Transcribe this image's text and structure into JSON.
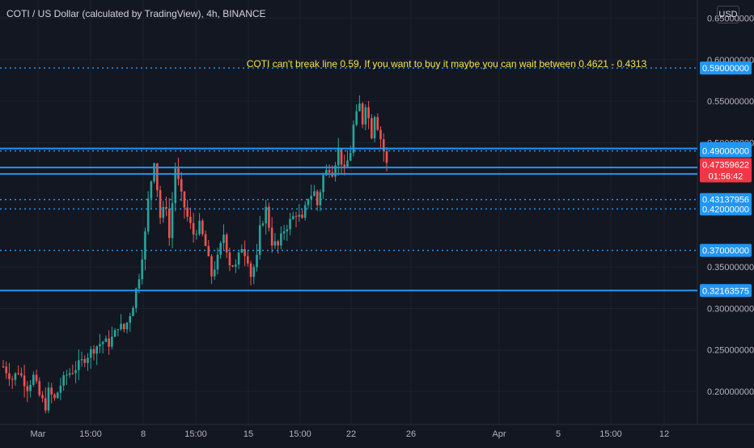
{
  "header": {
    "title": "COTI / US Dollar (calculated by TradingView), 4h, BINANCE",
    "currency": "USD"
  },
  "chart_data": {
    "type": "candlestick",
    "ylim": [
      0.16,
      0.672
    ],
    "y_ticks": [
      "0.65000000",
      "0.60000000",
      "0.55000000",
      "0.50000000",
      "0.35000000",
      "0.30000000",
      "0.25000000",
      "0.20000000"
    ],
    "x_ticks": [
      "Mar",
      "15:00",
      "8",
      "15:00",
      "15",
      "15:00",
      "22",
      "26",
      "Apr",
      "5",
      "15:00",
      "12"
    ],
    "annotation": "COTI can't break line 0.59. If you want to buy it maybe you can wait between 0.4621 - 0.4313",
    "levels": [
      {
        "label": "0.59000000",
        "value": 0.59,
        "style": "dotted"
      },
      {
        "label": "0.49291814",
        "value": 0.49291814,
        "style": "solid"
      },
      {
        "label": "0.49000000",
        "value": 0.49,
        "style": "dotted"
      },
      {
        "label": "0.47000000",
        "value": 0.47,
        "style": "solid",
        "show_label": false
      },
      {
        "label": "0.46214885",
        "value": 0.46214885,
        "style": "solid"
      },
      {
        "label": "0.43137956",
        "value": 0.43137956,
        "style": "dotted"
      },
      {
        "label": "0.42000000",
        "value": 0.42,
        "style": "dotted"
      },
      {
        "label": "0.37000000",
        "value": 0.37,
        "style": "dotted"
      },
      {
        "label": "0.32163575",
        "value": 0.32163575,
        "style": "solid"
      }
    ],
    "last_price": {
      "value": 0.47359622,
      "label": "0.47359622",
      "countdown": "01:56:42"
    },
    "price_path": [
      [
        0,
        0.23
      ],
      [
        3,
        0.215
      ],
      [
        5,
        0.225
      ],
      [
        8,
        0.205
      ],
      [
        10,
        0.218
      ],
      [
        12,
        0.195
      ],
      [
        14,
        0.182
      ],
      [
        15,
        0.2
      ],
      [
        17,
        0.19
      ],
      [
        19,
        0.208
      ],
      [
        21,
        0.22
      ],
      [
        23,
        0.225
      ],
      [
        25,
        0.232
      ],
      [
        27,
        0.24
      ],
      [
        29,
        0.248
      ],
      [
        31,
        0.255
      ],
      [
        33,
        0.26
      ],
      [
        35,
        0.258
      ],
      [
        37,
        0.27
      ],
      [
        38,
        0.28
      ],
      [
        40,
        0.275
      ],
      [
        41,
        0.283
      ],
      [
        43,
        0.305
      ],
      [
        45,
        0.34
      ],
      [
        47,
        0.39
      ],
      [
        48,
        0.43
      ],
      [
        49,
        0.455
      ],
      [
        50,
        0.48
      ],
      [
        52,
        0.41
      ],
      [
        54,
        0.425
      ],
      [
        55,
        0.385
      ],
      [
        57,
        0.47
      ],
      [
        59,
        0.435
      ],
      [
        61,
        0.41
      ],
      [
        63,
        0.39
      ],
      [
        65,
        0.4
      ],
      [
        67,
        0.375
      ],
      [
        69,
        0.34
      ],
      [
        71,
        0.36
      ],
      [
        73,
        0.39
      ],
      [
        75,
        0.355
      ],
      [
        77,
        0.35
      ],
      [
        79,
        0.375
      ],
      [
        81,
        0.36
      ],
      [
        82,
        0.34
      ],
      [
        84,
        0.36
      ],
      [
        85,
        0.395
      ],
      [
        87,
        0.42
      ],
      [
        89,
        0.38
      ],
      [
        91,
        0.375
      ],
      [
        93,
        0.395
      ],
      [
        95,
        0.405
      ],
      [
        97,
        0.415
      ],
      [
        99,
        0.405
      ],
      [
        101,
        0.435
      ],
      [
        103,
        0.44
      ],
      [
        104,
        0.425
      ],
      [
        106,
        0.46
      ],
      [
        108,
        0.47
      ],
      [
        109,
        0.465
      ],
      [
        111,
        0.49
      ],
      [
        113,
        0.465
      ],
      [
        115,
        0.49
      ],
      [
        116,
        0.52
      ],
      [
        118,
        0.545
      ],
      [
        119,
        0.525
      ],
      [
        120,
        0.548
      ],
      [
        122,
        0.51
      ],
      [
        123,
        0.535
      ],
      [
        124,
        0.52
      ],
      [
        126,
        0.49
      ],
      [
        127,
        0.4736
      ]
    ]
  }
}
